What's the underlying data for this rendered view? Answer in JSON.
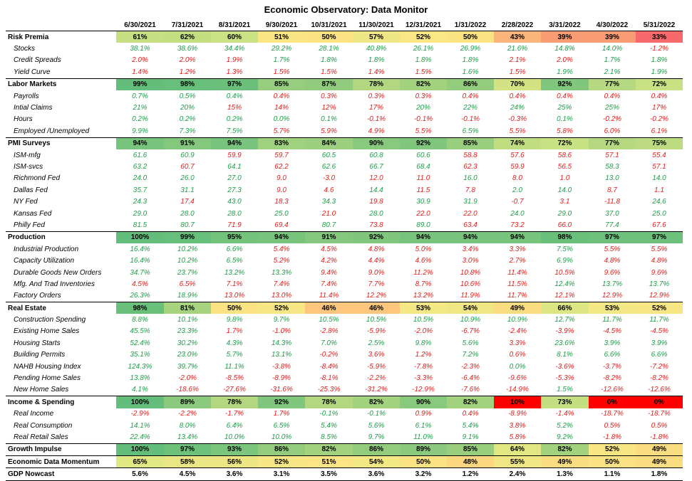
{
  "title": "Economic Observatory: Data Monitor",
  "columns": [
    "6/30/2021",
    "7/31/2021",
    "8/31/2021",
    "9/30/2021",
    "10/31/2021",
    "11/30/2021",
    "12/31/2021",
    "1/31/2022",
    "2/28/2022",
    "3/31/2022",
    "4/30/2022",
    "5/31/2022"
  ],
  "colors": {
    "positive": "#1e9e4a",
    "negative": "#e0201e"
  },
  "rows": [
    {
      "type": "cat",
      "label": "Risk Premia",
      "values": [
        "61%",
        "62%",
        "60%",
        "51%",
        "50%",
        "57%",
        "52%",
        "50%",
        "43%",
        "39%",
        "39%",
        "33%"
      ],
      "bg": [
        "#c5df82",
        "#c3de81",
        "#cae184",
        "#f9e584",
        "#fbe383",
        "#eee684",
        "#f9e684",
        "#fbe383",
        "#fbb479",
        "#fa9c73",
        "#fa9c73",
        "#f8696b"
      ]
    },
    {
      "type": "sub",
      "label": "Stocks",
      "values": [
        "38.1%",
        "38.6%",
        "34.4%",
        "29.2%",
        "28.1%",
        "40.8%",
        "26.1%",
        "26.9%",
        "21.6%",
        "14.8%",
        "14.0%",
        "-1.2%"
      ]
    },
    {
      "type": "sub",
      "label": "Credit Spreads",
      "values": [
        "2.0%",
        "2.0%",
        "1.9%",
        "1.7%",
        "1.8%",
        "1.8%",
        "1.8%",
        "1.8%",
        "2.1%",
        "2.0%",
        "1.7%",
        "1.8%"
      ],
      "signs": [
        "n",
        "n",
        "n",
        "p",
        "p",
        "p",
        "p",
        "p",
        "n",
        "n",
        "p",
        "p"
      ]
    },
    {
      "type": "sub",
      "label": "Yield Curve",
      "values": [
        "1.4%",
        "1.2%",
        "1.3%",
        "1.5%",
        "1.5%",
        "1.4%",
        "1.5%",
        "1.6%",
        "1.5%",
        "1.9%",
        "2.1%",
        "1.9%"
      ],
      "signs": [
        "n",
        "n",
        "n",
        "n",
        "n",
        "n",
        "n",
        "p",
        "n",
        "p",
        "p",
        "p"
      ]
    },
    {
      "type": "cat",
      "label": "Labor Markets",
      "values": [
        "99%",
        "98%",
        "97%",
        "85%",
        "87%",
        "78%",
        "82%",
        "86%",
        "70%",
        "92%",
        "77%",
        "72%"
      ],
      "bg": [
        "#63be7b",
        "#66bf7b",
        "#6ac07b",
        "#97cd7e",
        "#90cb7e",
        "#b2d780",
        "#a3d27f",
        "#94cc7e",
        "#d3e383",
        "#80c67d",
        "#b5d880",
        "#c8e183"
      ]
    },
    {
      "type": "sub",
      "label": "Payrolls",
      "values": [
        "0.7%",
        "0.5%",
        "0.4%",
        "0.4%",
        "0.3%",
        "0.3%",
        "0.3%",
        "0.4%",
        "0.4%",
        "0.4%",
        "0.4%",
        "0.4%"
      ],
      "signs": [
        "p",
        "p",
        "p",
        "n",
        "n",
        "n",
        "n",
        "n",
        "n",
        "n",
        "n",
        "n"
      ]
    },
    {
      "type": "sub",
      "label": "Intial Claims",
      "values": [
        "21%",
        "20%",
        "15%",
        "14%",
        "12%",
        "17%",
        "20%",
        "22%",
        "24%",
        "25%",
        "25%",
        "17%"
      ],
      "signs": [
        "p",
        "p",
        "n",
        "n",
        "n",
        "n",
        "p",
        "p",
        "p",
        "p",
        "p",
        "n"
      ]
    },
    {
      "type": "sub",
      "label": "Hours",
      "values": [
        "0.2%",
        "0.2%",
        "0.2%",
        "0.0%",
        "0.1%",
        "-0.1%",
        "-0.1%",
        "-0.1%",
        "-0.3%",
        "0.1%",
        "-0.2%",
        "-0.2%"
      ],
      "signs": [
        "p",
        "p",
        "p",
        "p",
        "p",
        "n",
        "n",
        "n",
        "n",
        "p",
        "n",
        "n"
      ]
    },
    {
      "type": "sub",
      "label": "Employed /Unemployed",
      "values": [
        "9.9%",
        "7.3%",
        "7.5%",
        "5.7%",
        "5.9%",
        "4.9%",
        "5.5%",
        "6.5%",
        "5.5%",
        "5.8%",
        "6.0%",
        "6.1%"
      ],
      "signs": [
        "p",
        "p",
        "p",
        "n",
        "n",
        "n",
        "n",
        "p",
        "n",
        "n",
        "n",
        "n"
      ]
    },
    {
      "type": "cat",
      "label": "PMI Surveys",
      "values": [
        "94%",
        "91%",
        "94%",
        "83%",
        "84%",
        "90%",
        "92%",
        "85%",
        "74%",
        "72%",
        "77%",
        "75%"
      ],
      "bg": [
        "#78c47c",
        "#84c87d",
        "#78c47c",
        "#a0d17f",
        "#9ccf7f",
        "#87c97d",
        "#80c67d",
        "#98ce7e",
        "#c1dd82",
        "#c8e183",
        "#b5d880",
        "#bddb81"
      ]
    },
    {
      "type": "sub",
      "label": "ISM-mfg",
      "values": [
        "61.6",
        "60.9",
        "59.9",
        "59.7",
        "60.5",
        "60.8",
        "60.6",
        "58.8",
        "57.6",
        "58.6",
        "57.1",
        "55.4"
      ],
      "signs": [
        "p",
        "p",
        "n",
        "n",
        "p",
        "p",
        "p",
        "n",
        "n",
        "n",
        "n",
        "n"
      ]
    },
    {
      "type": "sub",
      "label": "ISM-svcs",
      "values": [
        "63.2",
        "60.7",
        "64.1",
        "62.2",
        "62.6",
        "66.7",
        "68.4",
        "62.3",
        "59.9",
        "56.5",
        "58.3",
        "57.1"
      ],
      "signs": [
        "p",
        "n",
        "p",
        "n",
        "p",
        "p",
        "p",
        "n",
        "n",
        "n",
        "p",
        "n"
      ]
    },
    {
      "type": "sub",
      "label": "Richmond Fed",
      "values": [
        "24.0",
        "26.0",
        "27.0",
        "9.0",
        "-3.0",
        "12.0",
        "11.0",
        "16.0",
        "8.0",
        "1.0",
        "13.0",
        "14.0"
      ],
      "signs": [
        "p",
        "p",
        "p",
        "n",
        "n",
        "n",
        "n",
        "p",
        "n",
        "n",
        "p",
        "p"
      ]
    },
    {
      "type": "sub",
      "label": "Dallas Fed",
      "values": [
        "35.7",
        "31.1",
        "27.3",
        "9.0",
        "4.6",
        "14.4",
        "11.5",
        "7.8",
        "2.0",
        "14.0",
        "8.7",
        "1.1"
      ],
      "signs": [
        "p",
        "p",
        "p",
        "n",
        "n",
        "p",
        "n",
        "n",
        "p",
        "p",
        "n",
        "n"
      ]
    },
    {
      "type": "sub",
      "label": "NY Fed",
      "values": [
        "24.3",
        "17.4",
        "43.0",
        "18.3",
        "34.3",
        "19.8",
        "30.9",
        "31.9",
        "-0.7",
        "3.1",
        "-11.8",
        "24.6"
      ],
      "signs": [
        "p",
        "n",
        "p",
        "n",
        "p",
        "n",
        "p",
        "p",
        "n",
        "n",
        "n",
        "p"
      ]
    },
    {
      "type": "sub",
      "label": "Kansas Fed",
      "values": [
        "29.0",
        "28.0",
        "28.0",
        "25.0",
        "21.0",
        "28.0",
        "22.0",
        "22.0",
        "24.0",
        "29.0",
        "37.0",
        "25.0"
      ],
      "signs": [
        "p",
        "p",
        "p",
        "p",
        "n",
        "p",
        "n",
        "n",
        "p",
        "p",
        "p",
        "p"
      ]
    },
    {
      "type": "sub",
      "label": "Philly Fed",
      "values": [
        "81.5",
        "80.7",
        "71.9",
        "69.4",
        "80.7",
        "73.8",
        "89.0",
        "63.4",
        "73.2",
        "66.0",
        "77.4",
        "67.6"
      ],
      "signs": [
        "p",
        "p",
        "n",
        "n",
        "p",
        "n",
        "p",
        "n",
        "n",
        "n",
        "p",
        "n"
      ]
    },
    {
      "type": "cat",
      "label": "Production",
      "values": [
        "100%",
        "99%",
        "95%",
        "94%",
        "91%",
        "92%",
        "94%",
        "94%",
        "94%",
        "98%",
        "97%",
        "97%"
      ],
      "bg": [
        "#63be7b",
        "#66bf7b",
        "#74c37c",
        "#78c47c",
        "#84c87d",
        "#80c67d",
        "#78c47c",
        "#78c47c",
        "#78c47c",
        "#69c07b",
        "#6dc17b",
        "#6dc17b"
      ]
    },
    {
      "type": "sub",
      "label": "Industrial Production",
      "values": [
        "16.4%",
        "10.2%",
        "6.6%",
        "5.4%",
        "4.5%",
        "4.8%",
        "5.0%",
        "3.4%",
        "3.3%",
        "7.5%",
        "5.5%",
        "5.5%"
      ],
      "signs": [
        "p",
        "p",
        "p",
        "n",
        "n",
        "n",
        "n",
        "n",
        "n",
        "p",
        "n",
        "n"
      ]
    },
    {
      "type": "sub",
      "label": "Capacity Utilization",
      "values": [
        "16.4%",
        "10.2%",
        "6.5%",
        "5.2%",
        "4.2%",
        "4.4%",
        "4.6%",
        "3.0%",
        "2.7%",
        "6.9%",
        "4.8%",
        "4.8%"
      ],
      "signs": [
        "p",
        "p",
        "p",
        "n",
        "n",
        "n",
        "n",
        "n",
        "n",
        "p",
        "n",
        "n"
      ]
    },
    {
      "type": "sub",
      "label": "Durable Goods New Orders",
      "values": [
        "34.7%",
        "23.7%",
        "13.2%",
        "13.3%",
        "9.4%",
        "9.0%",
        "11.2%",
        "10.8%",
        "11.4%",
        "10.5%",
        "9.6%",
        "9.6%"
      ],
      "signs": [
        "p",
        "p",
        "p",
        "p",
        "n",
        "n",
        "n",
        "n",
        "n",
        "n",
        "n",
        "n"
      ]
    },
    {
      "type": "sub",
      "label": "Mfg. And Trad Inventories",
      "values": [
        "4.5%",
        "6.5%",
        "7.1%",
        "7.4%",
        "7.4%",
        "7.7%",
        "8.7%",
        "10.6%",
        "11.5%",
        "12.4%",
        "13.7%",
        "13.7%"
      ],
      "signs": [
        "n",
        "n",
        "n",
        "n",
        "n",
        "n",
        "n",
        "n",
        "n",
        "p",
        "p",
        "p"
      ]
    },
    {
      "type": "sub",
      "label": "Factory Orders",
      "values": [
        "26.3%",
        "18.9%",
        "13.0%",
        "13.0%",
        "11.4%",
        "12.2%",
        "13.2%",
        "11.9%",
        "11.7%",
        "12.1%",
        "12.9%",
        "12.9%"
      ],
      "signs": [
        "p",
        "p",
        "n",
        "n",
        "n",
        "n",
        "n",
        "n",
        "n",
        "n",
        "n",
        "n"
      ]
    },
    {
      "type": "cat",
      "label": "Real Estate",
      "values": [
        "98%",
        "81%",
        "50%",
        "52%",
        "46%",
        "46%",
        "53%",
        "54%",
        "49%",
        "66%",
        "53%",
        "52%"
      ],
      "bg": [
        "#69c07b",
        "#a7d37f",
        "#fbe383",
        "#f8e684",
        "#fcc67c",
        "#fcc67c",
        "#f3e884",
        "#f0e784",
        "#fbdd81",
        "#dce783",
        "#f3e884",
        "#f8e684"
      ]
    },
    {
      "type": "sub",
      "label": "Construction Spending",
      "values": [
        "8.8%",
        "10.1%",
        "9.8%",
        "9.7%",
        "10.5%",
        "10.5%",
        "10.5%",
        "10.9%",
        "10.9%",
        "12.7%",
        "11.7%",
        "11.7%"
      ],
      "signs": [
        "p",
        "p",
        "p",
        "p",
        "p",
        "p",
        "p",
        "p",
        "p",
        "p",
        "p",
        "p"
      ]
    },
    {
      "type": "sub",
      "label": "Existing Home Sales",
      "values": [
        "45.5%",
        "23.3%",
        "1.7%",
        "-1.0%",
        "-2.8%",
        "-5.9%",
        "-2.0%",
        "-6.7%",
        "-2.4%",
        "-3.9%",
        "-4.5%",
        "-4.5%"
      ],
      "signs": [
        "p",
        "p",
        "n",
        "n",
        "n",
        "n",
        "n",
        "n",
        "n",
        "n",
        "n",
        "n"
      ]
    },
    {
      "type": "sub",
      "label": "Housing Starts",
      "values": [
        "52.4%",
        "30.2%",
        "4.3%",
        "14.3%",
        "7.0%",
        "2.5%",
        "9.8%",
        "5.6%",
        "3.3%",
        "23.6%",
        "3.9%",
        "3.9%"
      ],
      "signs": [
        "p",
        "p",
        "p",
        "p",
        "p",
        "p",
        "p",
        "p",
        "n",
        "p",
        "p",
        "p"
      ]
    },
    {
      "type": "sub",
      "label": "Building Permits",
      "values": [
        "35.1%",
        "23.0%",
        "5.7%",
        "13.1%",
        "-0.2%",
        "3.6%",
        "1.2%",
        "7.2%",
        "0.6%",
        "8.1%",
        "6.6%",
        "6.6%"
      ],
      "signs": [
        "p",
        "p",
        "p",
        "p",
        "n",
        "n",
        "n",
        "p",
        "n",
        "p",
        "p",
        "p"
      ]
    },
    {
      "type": "sub",
      "label": "NAHB Housing Index",
      "values": [
        "124.3%",
        "39.7%",
        "11.1%",
        "-3.8%",
        "-8.4%",
        "-5.9%",
        "-7.8%",
        "-2.3%",
        "0.0%",
        "-3.6%",
        "-3.7%",
        "-7.2%"
      ],
      "signs": [
        "p",
        "p",
        "p",
        "n",
        "n",
        "n",
        "n",
        "n",
        "p",
        "n",
        "n",
        "n"
      ]
    },
    {
      "type": "sub",
      "label": "Pending Home Sales",
      "values": [
        "13.8%",
        "-2.0%",
        "-8.5%",
        "-8.9%",
        "-8.1%",
        "-2.2%",
        "-3.3%",
        "-6.4%",
        "-9.6%",
        "-5.3%",
        "-8.2%",
        "-8.2%"
      ],
      "signs": [
        "p",
        "n",
        "n",
        "n",
        "n",
        "n",
        "n",
        "n",
        "n",
        "n",
        "n",
        "n"
      ]
    },
    {
      "type": "sub",
      "label": "New Home Sales",
      "values": [
        "4.1%",
        "-18.6%",
        "-27.6%",
        "-31.6%",
        "-25.3%",
        "-31.2%",
        "-12.9%",
        "-7.6%",
        "-14.9%",
        "1.5%",
        "-12.6%",
        "-12.6%"
      ],
      "signs": [
        "p",
        "n",
        "n",
        "n",
        "n",
        "n",
        "n",
        "n",
        "n",
        "p",
        "n",
        "n"
      ]
    },
    {
      "type": "cat",
      "label": "Income & Spending",
      "values": [
        "100%",
        "89%",
        "78%",
        "92%",
        "78%",
        "82%",
        "90%",
        "82%",
        "10%",
        "73%",
        "0%",
        "0%"
      ],
      "bg": [
        "#63be7b",
        "#8bca7e",
        "#b2d780",
        "#80c67d",
        "#b2d780",
        "#a3d27f",
        "#87c97d",
        "#a3d27f",
        "#ff0000",
        "#c4de82",
        "#ff0000",
        "#ff0000"
      ]
    },
    {
      "type": "sub",
      "label": "Real Income",
      "values": [
        "-2.9%",
        "-2.2%",
        "-1.7%",
        "1.7%",
        "-0.1%",
        "-0.1%",
        "0.9%",
        "0.4%",
        "-8.9%",
        "-1.4%",
        "-18.7%",
        "-18.7%"
      ],
      "signs": [
        "n",
        "n",
        "n",
        "n",
        "p",
        "p",
        "n",
        "n",
        "n",
        "n",
        "n",
        "n"
      ]
    },
    {
      "type": "sub",
      "label": "Real Consumption",
      "values": [
        "14.1%",
        "8.0%",
        "6.4%",
        "6.5%",
        "5.4%",
        "5.6%",
        "6.1%",
        "5.4%",
        "3.8%",
        "5.2%",
        "0.5%",
        "0.5%"
      ],
      "signs": [
        "p",
        "p",
        "p",
        "p",
        "p",
        "p",
        "p",
        "p",
        "n",
        "p",
        "n",
        "n"
      ]
    },
    {
      "type": "sub",
      "label": "Real Retail Sales",
      "values": [
        "22.4%",
        "13.4%",
        "10.0%",
        "10.0%",
        "8.5%",
        "9.7%",
        "11.0%",
        "9.1%",
        "5.8%",
        "9.2%",
        "-1.8%",
        "-1.8%"
      ],
      "signs": [
        "p",
        "p",
        "p",
        "p",
        "p",
        "p",
        "p",
        "p",
        "n",
        "p",
        "n",
        "n"
      ]
    },
    {
      "type": "sum",
      "label": "Growth Impulse",
      "values": [
        "100%",
        "97%",
        "93%",
        "86%",
        "82%",
        "86%",
        "89%",
        "85%",
        "64%",
        "82%",
        "52%",
        "49%"
      ],
      "bg": [
        "#63be7b",
        "#6dc17b",
        "#7cc57c",
        "#94cc7e",
        "#a3d27f",
        "#94cc7e",
        "#8bca7e",
        "#98ce7e",
        "#e1e883",
        "#a3d27f",
        "#f8e684",
        "#fbdd81"
      ]
    },
    {
      "type": "sum",
      "label": "Economic Data Momentum",
      "values": [
        "65%",
        "58%",
        "56%",
        "52%",
        "51%",
        "54%",
        "50%",
        "48%",
        "55%",
        "49%",
        "50%",
        "49%"
      ],
      "bg": [
        "#dfe883",
        "#eae684",
        "#eee684",
        "#f8e684",
        "#fbe584",
        "#f3e884",
        "#fbe383",
        "#fcd77f",
        "#f0e784",
        "#fbdd81",
        "#fbe383",
        "#fbdd81"
      ]
    },
    {
      "type": "sum",
      "label": "GDP Nowcast",
      "values": [
        "5.6%",
        "4.5%",
        "3.6%",
        "3.1%",
        "3.5%",
        "3.6%",
        "3.2%",
        "1.2%",
        "2.4%",
        "1.3%",
        "1.1%",
        "1.8%"
      ],
      "last": true
    }
  ]
}
